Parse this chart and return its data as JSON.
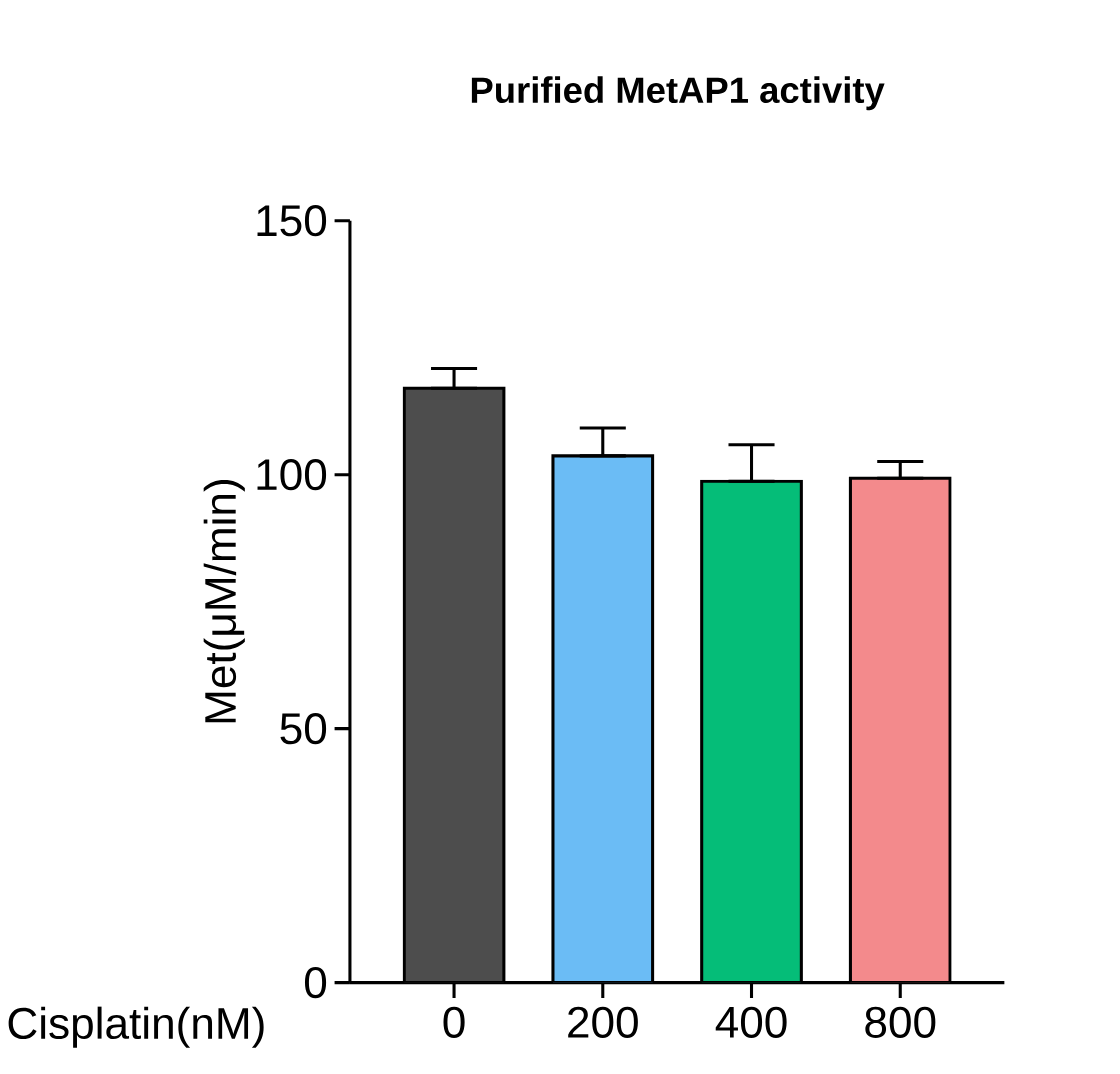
{
  "chart_data": {
    "type": "bar",
    "title": "Purified MetAP1 activity",
    "xlabel": "Cisplatin(nM)",
    "ylabel": "Met(μM/min)",
    "categories": [
      "0",
      "200",
      "400",
      "800"
    ],
    "values": [
      117.0,
      103.7,
      98.7,
      99.3
    ],
    "colors": [
      "#4d4d4d",
      "#6bbcf5",
      "#05bd78",
      "#f38a8c"
    ],
    "errors": [
      [
        117.0,
        120.9
      ],
      [
        103.7,
        109.2
      ],
      [
        98.7,
        105.9
      ],
      [
        99.3,
        102.6
      ]
    ],
    "ylim": [
      0,
      150
    ],
    "yticks": [
      0,
      50,
      100,
      150
    ]
  }
}
